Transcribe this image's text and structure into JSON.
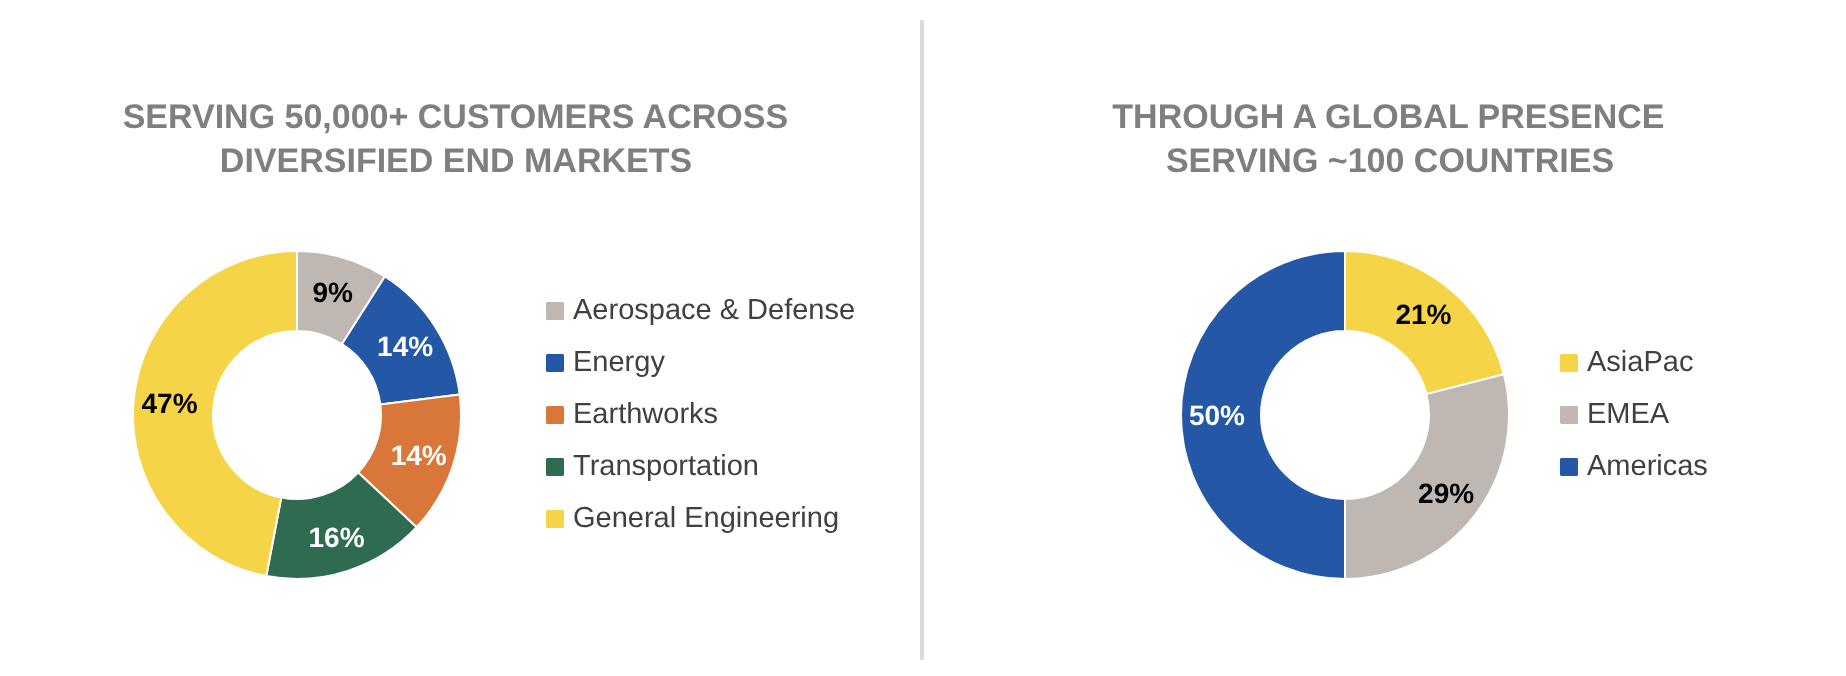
{
  "chart_data": [
    {
      "type": "donut",
      "title": "SERVING 50,000+ CUSTOMERS ACROSS DIVERSIFIED END MARKETS",
      "categories": [
        "Aerospace & Defense",
        "Energy",
        "Earthworks",
        "Transportation",
        "General Engineering"
      ],
      "values": [
        9,
        14,
        14,
        16,
        47
      ],
      "colors": [
        "#bfb8b2",
        "#2457a5",
        "#d9763a",
        "#2e6b50",
        "#f5d547"
      ],
      "value_labels": [
        "9%",
        "14%",
        "14%",
        "16%",
        "47%"
      ],
      "legend": "right"
    },
    {
      "type": "donut",
      "title": "THROUGH A GLOBAL PRESENCE SERVING ~100 COUNTRIES",
      "categories": [
        "AsiaPac",
        "EMEA",
        "Americas"
      ],
      "values": [
        21,
        29,
        50
      ],
      "colors": [
        "#f5d547",
        "#bfb8b2",
        "#2457a5"
      ],
      "value_labels": [
        "21%",
        "29%",
        "50%"
      ],
      "legend": "right"
    }
  ]
}
